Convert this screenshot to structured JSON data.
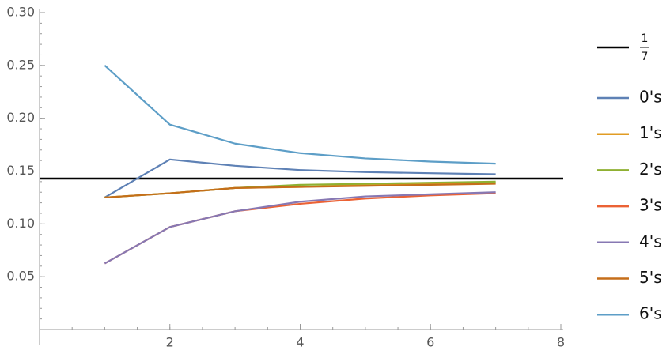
{
  "chart_data": {
    "type": "line",
    "x": [
      1,
      2,
      3,
      4,
      5,
      6,
      7
    ],
    "xlim": [
      0,
      8
    ],
    "xticks": [
      2,
      4,
      6,
      8
    ],
    "ylim": [
      0,
      0.3
    ],
    "yticks": [
      {
        "value": 0.05,
        "label": "0.05"
      },
      {
        "value": 0.1,
        "label": "0.10"
      },
      0.15,
      {
        "value": 0.2,
        "label": "0.20"
      },
      0.25,
      {
        "value": 0.3,
        "label": "0.30"
      }
    ],
    "reference_line": {
      "value": 0.142857,
      "color": "#000000",
      "label": {
        "numerator": "1",
        "denominator": "7"
      }
    },
    "series": [
      {
        "name": "0's",
        "color": "#5e81b5",
        "values": [
          0.125,
          0.161,
          0.155,
          0.151,
          0.149,
          0.148,
          0.147
        ]
      },
      {
        "name": "1's",
        "color": "#e19c24",
        "values": [
          0.125,
          0.129,
          0.134,
          0.135,
          0.137,
          0.138,
          0.139
        ]
      },
      {
        "name": "2's",
        "color": "#8fb032",
        "values": [
          0.125,
          0.129,
          0.134,
          0.137,
          0.138,
          0.139,
          0.14
        ]
      },
      {
        "name": "3's",
        "color": "#eb6235",
        "values": [
          0.0625,
          0.097,
          0.112,
          0.119,
          0.124,
          0.127,
          0.129
        ]
      },
      {
        "name": "4's",
        "color": "#8778b3",
        "values": [
          0.0625,
          0.097,
          0.112,
          0.121,
          0.126,
          0.128,
          0.13
        ]
      },
      {
        "name": "5's",
        "color": "#c56e1a",
        "values": [
          0.125,
          0.129,
          0.134,
          0.135,
          0.136,
          0.137,
          0.138
        ]
      },
      {
        "name": "6's",
        "color": "#5d9ec7",
        "values": [
          0.25,
          0.194,
          0.176,
          0.167,
          0.162,
          0.159,
          0.157
        ]
      }
    ]
  }
}
